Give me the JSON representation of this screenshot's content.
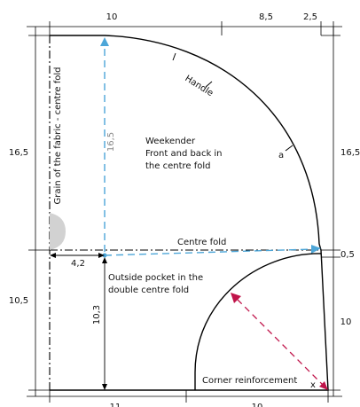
{
  "colors": {
    "outline": "#000000",
    "grain_arrow": "#4da6d8",
    "pocket_arrow": "#c0144a",
    "grain_measure_text": "#8a8a8a",
    "marker_fill": "#d2d2d2"
  },
  "dimensions": {
    "top": [
      "10",
      "8,5",
      "2,5"
    ],
    "bottom": [
      "11",
      "10"
    ],
    "left": [
      "16,5",
      "10,5"
    ],
    "right_upper": "16,5",
    "right_mid": "0,5",
    "right_lower": "10",
    "pocket_offset": "4,2",
    "pocket_height": "10,3",
    "grain_length": "16,5"
  },
  "labels": {
    "grain": "Grain of the fabric - centre fold",
    "handle": "Handle",
    "point_a": "a",
    "point_x": "x",
    "weekender": [
      "Weekender",
      "Front and back in",
      "the centre fold"
    ],
    "centre_fold": "Centre fold",
    "pocket": [
      "Outside pocket in the",
      "double centre fold"
    ],
    "corner": "Corner reinforcement"
  }
}
